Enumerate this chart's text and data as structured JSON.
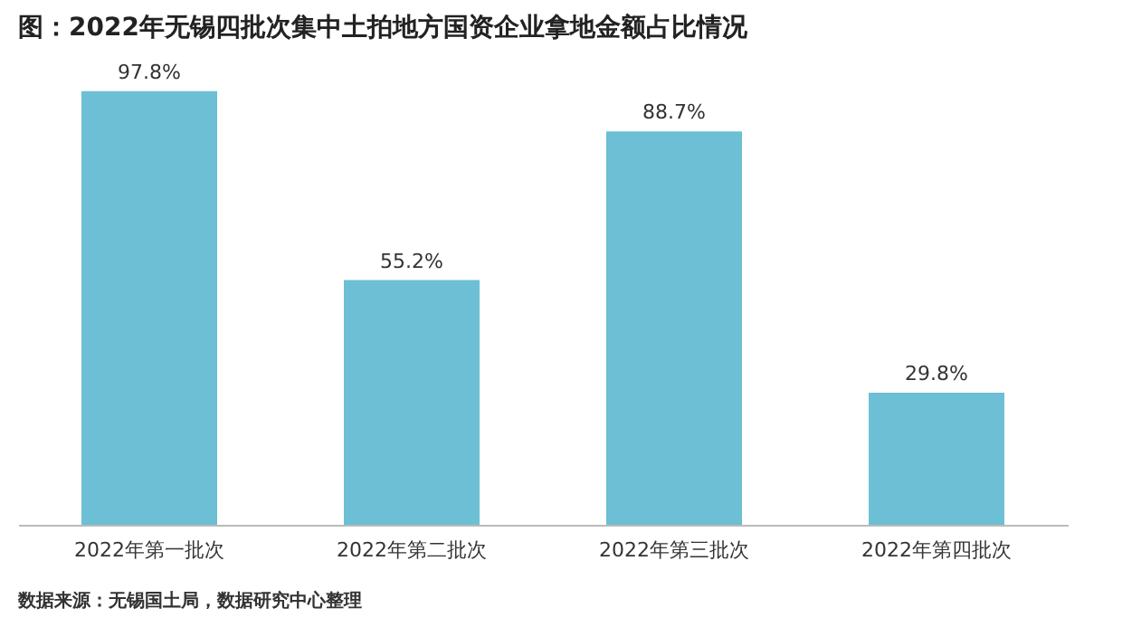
{
  "chart_data": {
    "type": "bar",
    "title": "图：2022年无锡四批次集中土拍地方国资企业拿地金额占比情况",
    "categories": [
      "2022年第一批次",
      "2022年第二批次",
      "2022年第三批次",
      "2022年第四批次"
    ],
    "values": [
      97.8,
      55.2,
      88.7,
      29.8
    ],
    "value_labels": [
      "97.8%",
      "55.2%",
      "88.7%",
      "29.8%"
    ],
    "color": "#6cbfd4",
    "grid": false,
    "annotations": [
      "数据来源：无锡国土局，数据研究中心整理"
    ]
  }
}
